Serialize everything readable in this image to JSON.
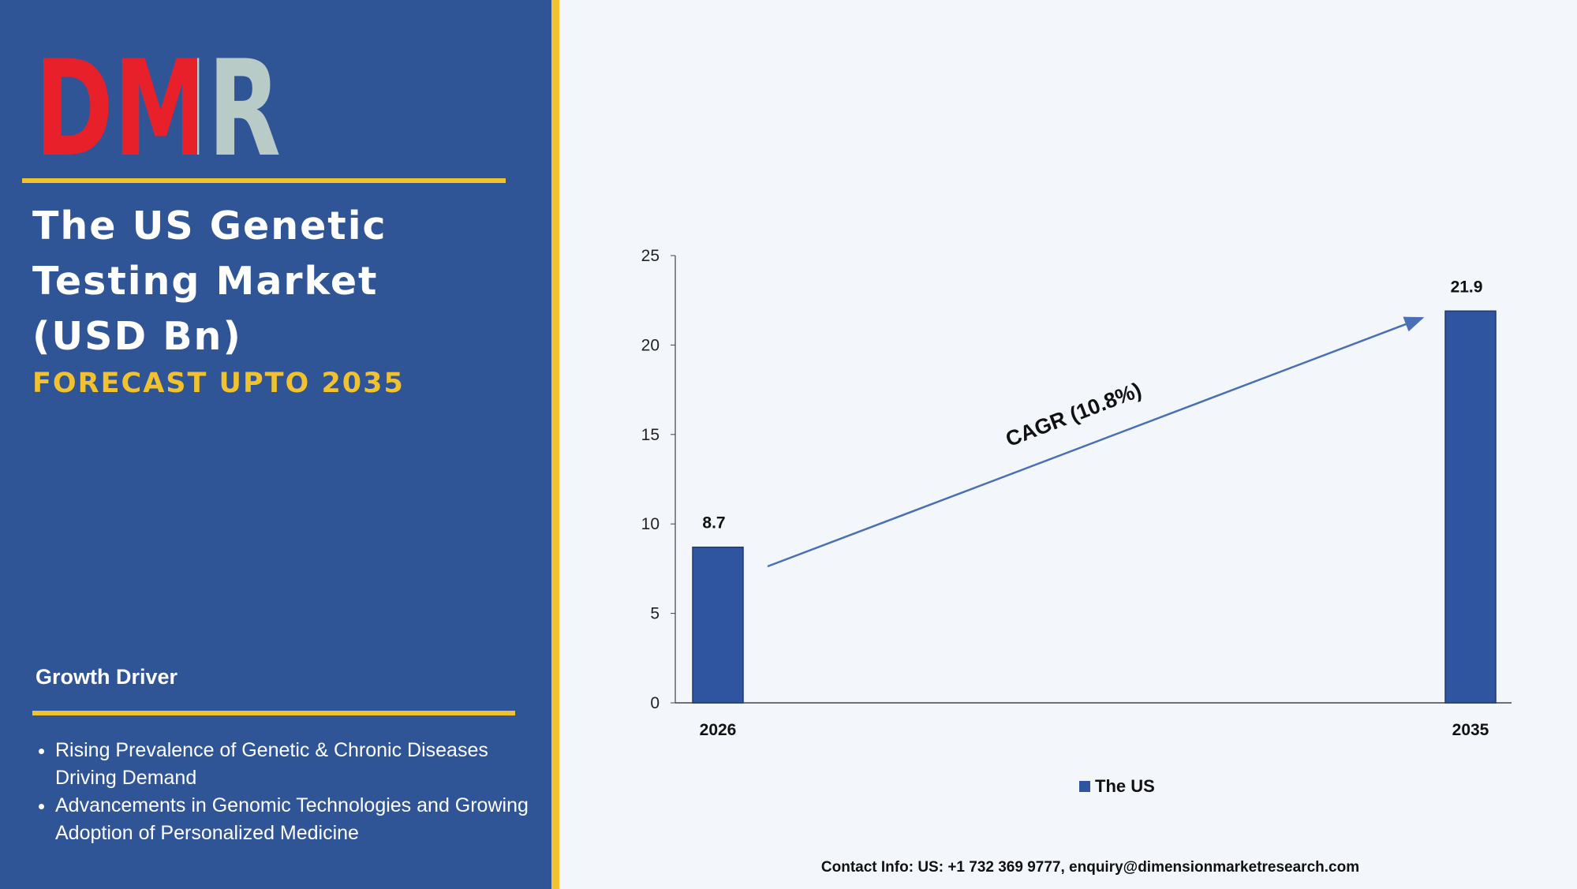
{
  "left_panel": {
    "logo": "DMR",
    "title": [
      "The US Genetic",
      "Testing Market",
      "(USD Bn)"
    ],
    "subtitle": "FORECAST UPTO 2035",
    "section_title": "Growth Driver",
    "bullets": [
      "Rising Prevalence of Genetic & Chronic Diseases Driving Demand",
      "Advancements in Genomic Technologies and Growing Adoption of Personalized Medicine"
    ]
  },
  "chart_data": {
    "type": "bar",
    "categories": [
      "2026",
      "2035"
    ],
    "series": [
      {
        "name": "The US",
        "color": "#2f55a0",
        "values": [
          8.7,
          21.9
        ]
      }
    ],
    "ylim": [
      0,
      25
    ],
    "yticks": [
      0,
      5,
      10,
      15,
      20,
      25
    ],
    "annotation": "CAGR (10.8%)"
  },
  "footer": {
    "contact": "Contact Info: US: +1 732 369 9777, enquiry@dimensionmarketresearch.com"
  }
}
